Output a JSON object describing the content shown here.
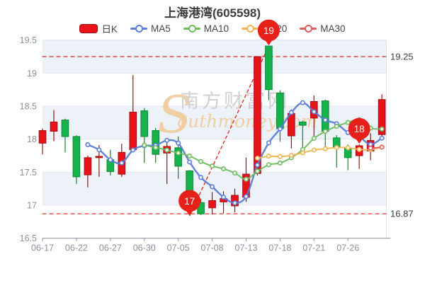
{
  "title": "上海港湾(605598)",
  "watermark": {
    "big_letter": "S",
    "line1": "南方财富网",
    "line2": "outhmoney.com"
  },
  "legend": {
    "items": [
      {
        "label": "日K",
        "marker": "candle",
        "color": "#e81419"
      },
      {
        "label": "MA5",
        "marker": "ring",
        "color": "#5b7cd9"
      },
      {
        "label": "MA10",
        "marker": "ring",
        "color": "#6fbb5e"
      },
      {
        "label": "MA20",
        "marker": "ring",
        "color": "#f1b44f"
      },
      {
        "label": "MA30",
        "marker": "ring",
        "color": "#e25c5c"
      }
    ]
  },
  "chart_data": {
    "type": "candlestick",
    "title": "上海港湾(605598)",
    "ylim": [
      16.5,
      19.5
    ],
    "y_ticks": [
      "19.5",
      "19",
      "18.5",
      "18",
      "17.5",
      "17",
      "16.5"
    ],
    "y_tick_values": [
      19.5,
      19,
      18.5,
      18,
      17.5,
      17,
      16.5
    ],
    "x_tick_labels": [
      "06-17",
      "06-22",
      "06-27",
      "06-30",
      "07-05",
      "07-08",
      "07-13",
      "07-18",
      "07-21",
      "07-26"
    ],
    "candles": [
      {
        "date": "06-17",
        "o": 17.94,
        "h": 18.16,
        "l": 17.77,
        "c": 18.13
      },
      {
        "date": "06-20",
        "o": 18.12,
        "h": 18.44,
        "l": 17.97,
        "c": 18.26
      },
      {
        "date": "06-21",
        "o": 18.29,
        "h": 18.31,
        "l": 17.8,
        "c": 18.04
      },
      {
        "date": "06-22",
        "o": 18.04,
        "h": 18.06,
        "l": 17.32,
        "c": 17.43
      },
      {
        "date": "06-23",
        "o": 17.46,
        "h": 17.75,
        "l": 17.27,
        "c": 17.72
      },
      {
        "date": "06-24",
        "o": 17.72,
        "h": 17.91,
        "l": 17.43,
        "c": 17.74
      },
      {
        "date": "06-27",
        "o": 17.69,
        "h": 17.84,
        "l": 17.45,
        "c": 17.51
      },
      {
        "date": "06-28",
        "o": 17.47,
        "h": 17.93,
        "l": 17.43,
        "c": 17.8
      },
      {
        "date": "06-29",
        "o": 17.84,
        "h": 18.97,
        "l": 17.82,
        "c": 18.41
      },
      {
        "date": "06-30",
        "o": 18.43,
        "h": 18.47,
        "l": 17.64,
        "c": 18.04
      },
      {
        "date": "07-01",
        "o": 18.13,
        "h": 18.17,
        "l": 17.64,
        "c": 17.77
      },
      {
        "date": "07-04",
        "o": 17.79,
        "h": 17.95,
        "l": 17.32,
        "c": 17.89
      },
      {
        "date": "07-05",
        "o": 17.87,
        "h": 18.04,
        "l": 17.4,
        "c": 17.59
      },
      {
        "date": "07-06",
        "o": 17.52,
        "h": 17.53,
        "l": 16.84,
        "c": 16.98
      },
      {
        "date": "07-07",
        "o": 17.04,
        "h": 17.1,
        "l": 16.85,
        "c": 16.87
      },
      {
        "date": "07-08",
        "o": 16.96,
        "h": 17.2,
        "l": 16.86,
        "c": 17.07
      },
      {
        "date": "07-11",
        "o": 17.05,
        "h": 17.21,
        "l": 16.88,
        "c": 17.1
      },
      {
        "date": "07-12",
        "o": 16.99,
        "h": 17.25,
        "l": 16.89,
        "c": 17.15
      },
      {
        "date": "07-13",
        "o": 17.12,
        "h": 17.72,
        "l": 17.05,
        "c": 17.47
      },
      {
        "date": "07-14",
        "o": 17.48,
        "h": 19.25,
        "l": 17.45,
        "c": 19.25
      },
      {
        "date": "07-15",
        "o": 19.41,
        "h": 19.41,
        "l": 18.59,
        "c": 18.75
      },
      {
        "date": "07-18",
        "o": 18.7,
        "h": 18.74,
        "l": 17.96,
        "c": 18.16
      },
      {
        "date": "07-19",
        "o": 18.05,
        "h": 18.45,
        "l": 17.86,
        "c": 18.39
      },
      {
        "date": "07-20",
        "o": 18.26,
        "h": 18.28,
        "l": 17.77,
        "c": 18.21
      },
      {
        "date": "07-21",
        "o": 18.32,
        "h": 18.66,
        "l": 18.0,
        "c": 18.57
      },
      {
        "date": "07-22",
        "o": 18.58,
        "h": 18.6,
        "l": 17.86,
        "c": 18.12
      },
      {
        "date": "07-25",
        "o": 18.02,
        "h": 18.06,
        "l": 17.57,
        "c": 17.88
      },
      {
        "date": "07-26",
        "o": 17.86,
        "h": 17.92,
        "l": 17.53,
        "c": 17.72
      },
      {
        "date": "07-27",
        "o": 17.75,
        "h": 17.92,
        "l": 17.55,
        "c": 17.9
      },
      {
        "date": "07-28",
        "o": 17.82,
        "h": 18.09,
        "l": 17.68,
        "c": 17.98
      },
      {
        "date": "07-29",
        "o": 18.07,
        "h": 18.68,
        "l": 18.05,
        "c": 18.6
      }
    ],
    "ma_series": [
      {
        "name": "MA5",
        "period": 5,
        "color": "#5b7cd9"
      },
      {
        "name": "MA10",
        "period": 10,
        "color": "#6fbb5e"
      },
      {
        "name": "MA20",
        "period": 20,
        "color": "#f1b44f"
      },
      {
        "name": "MA30",
        "period": 30,
        "color": "#e25c5c"
      }
    ],
    "ref_lines": [
      {
        "value": 19.25,
        "label": "19.25"
      },
      {
        "value": 16.87,
        "label": "16.87"
      }
    ],
    "markers": [
      {
        "label": "19",
        "index": 20,
        "anchor": "high"
      },
      {
        "label": "17",
        "index": 13,
        "anchor": "low"
      },
      {
        "label": "18",
        "index": 28,
        "anchor": "high"
      }
    ],
    "trend_line": {
      "from_index": 13,
      "from_anchor": "low",
      "to_index": 20,
      "to_anchor": "high"
    },
    "colors": {
      "bull": "#e81419",
      "bull_border": "#a30b10",
      "bear": "#15b34a",
      "bear_border": "#0b8a36",
      "marker_red": "#e7211a",
      "band": "#edf1f8",
      "grid": "#e2e6ee",
      "border": "#dde1ea",
      "axis_line": "#86909c",
      "axis_text": "#8b919c",
      "label_text": "#3d3d3d",
      "watermark_gray": "#c9c9c9",
      "watermark_tan": "#f0c894"
    }
  }
}
